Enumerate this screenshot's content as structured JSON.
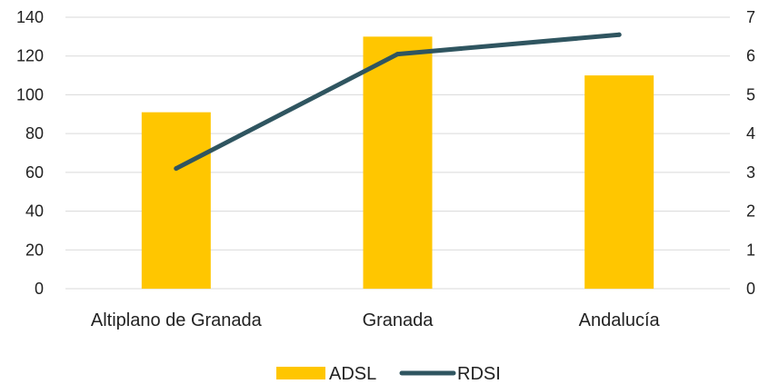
{
  "chart_data": {
    "type": "bar",
    "categories": [
      "Altiplano de Granada",
      "Granada",
      "Andalucía"
    ],
    "series": [
      {
        "name": "ADSL",
        "type": "bar",
        "axis": "left",
        "values": [
          91,
          130,
          110
        ],
        "color": "#FFC600"
      },
      {
        "name": "RDSI",
        "type": "line",
        "axis": "right",
        "values": [
          3.1,
          6.05,
          6.55
        ],
        "color": "#2F5560"
      }
    ],
    "y_left": {
      "ylim": [
        0,
        140
      ],
      "ticks": [
        "0",
        "20",
        "40",
        "60",
        "80",
        "100",
        "120",
        "140"
      ]
    },
    "y_right": {
      "ylim": [
        0,
        7
      ],
      "ticks": [
        "0",
        "1",
        "2",
        "3",
        "4",
        "5",
        "6",
        "7"
      ]
    },
    "title": "",
    "xlabel": "",
    "ylabel": "",
    "grid": true,
    "legend": {
      "position": "bottom",
      "entries": [
        "ADSL",
        "RDSI"
      ]
    }
  }
}
